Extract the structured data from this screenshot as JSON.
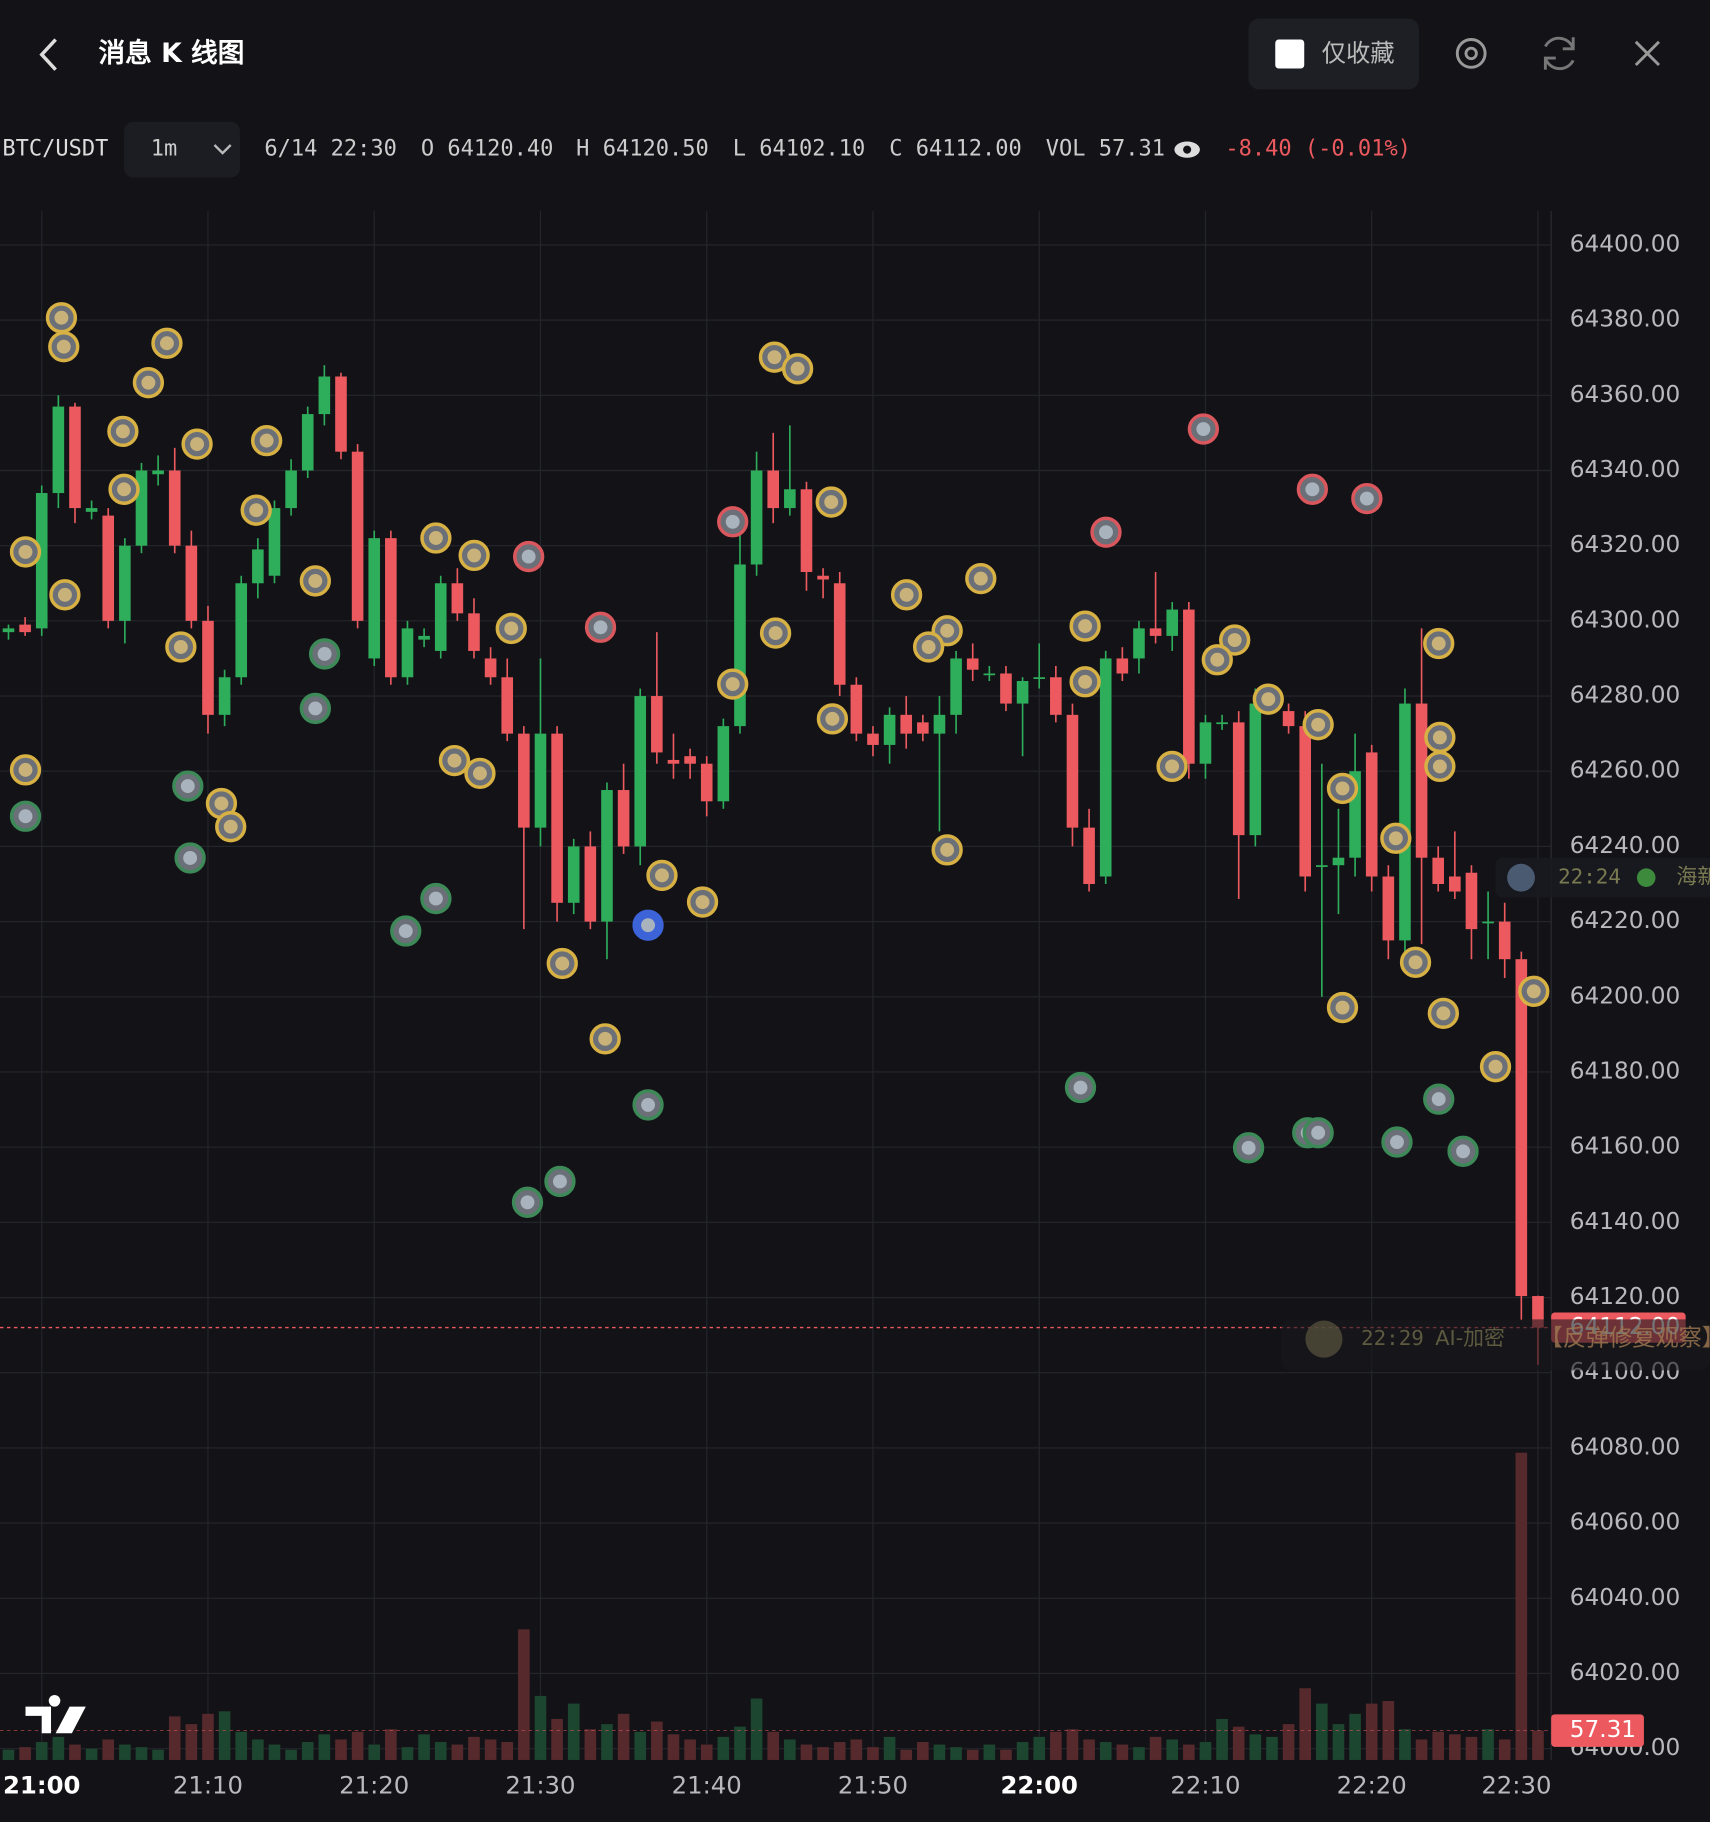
{
  "header": {
    "title": "消息 K 线图",
    "favorites_label": "仅收藏"
  },
  "info": {
    "symbol": "BTC/USDT",
    "interval": "1m",
    "items": [
      {
        "label": "",
        "value": "6/14 22:30"
      },
      {
        "label": "O",
        "value": "64120.40"
      },
      {
        "label": "H",
        "value": "64120.50"
      },
      {
        "label": "L",
        "value": "64102.10"
      },
      {
        "label": "C",
        "value": "64112.00"
      },
      {
        "label": "VOL",
        "value": "57.31"
      }
    ],
    "change": "-8.40 (-0.01%)"
  },
  "chart_data": {
    "type": "candlestick",
    "ylim": [
      63997,
      64409
    ],
    "yticks": [
      {
        "value": 64400,
        "label": "64400.00"
      },
      {
        "value": 64380,
        "label": "64380.00"
      },
      {
        "value": 64360,
        "label": "64360.00"
      },
      {
        "value": 64340,
        "label": "64340.00"
      },
      {
        "value": 64320,
        "label": "64320.00"
      },
      {
        "value": 64300,
        "label": "64300.00"
      },
      {
        "value": 64280,
        "label": "64280.00"
      },
      {
        "value": 64260,
        "label": "64260.00"
      },
      {
        "value": 64240,
        "label": "64240.00"
      },
      {
        "value": 64220,
        "label": "64220.00"
      },
      {
        "value": 64200,
        "label": "64200.00"
      },
      {
        "value": 64180,
        "label": "64180.00"
      },
      {
        "value": 64160,
        "label": "64160.00"
      },
      {
        "value": 64140,
        "label": "64140.00"
      },
      {
        "value": 64120,
        "label": "64120.00"
      },
      {
        "value": 64100,
        "label": "64100.00"
      },
      {
        "value": 64080,
        "label": "64080.00"
      },
      {
        "value": 64060,
        "label": "64060.00"
      },
      {
        "value": 64040,
        "label": "64040.00"
      },
      {
        "value": 64020,
        "label": "64020.00"
      },
      {
        "value": 64000,
        "label": "64000.00"
      }
    ],
    "xticks": [
      {
        "value": 2,
        "label": "21:00"
      },
      {
        "value": 12,
        "label": "21:10"
      },
      {
        "value": 22,
        "label": "21:20"
      },
      {
        "value": 32,
        "label": "21:30"
      },
      {
        "value": 42,
        "label": "21:40"
      },
      {
        "value": 52,
        "label": "21:50"
      },
      {
        "value": 62,
        "label": "22:00"
      },
      {
        "value": 72,
        "label": "22:10"
      },
      {
        "value": 82,
        "label": "22:20"
      },
      {
        "value": 92,
        "label": "22:30"
      }
    ],
    "up_color": "#2eae5b",
    "down_color": "#ec5a5f",
    "candles": [
      [
        64297,
        64299,
        64295,
        64298
      ],
      [
        64299,
        64301,
        64296,
        64297
      ],
      [
        64298,
        64336,
        64296,
        64334
      ],
      [
        64334,
        64360,
        64330,
        64357
      ],
      [
        64357,
        64358,
        64326,
        64330
      ],
      [
        64329,
        64332,
        64327,
        64330
      ],
      [
        64328,
        64330,
        64298,
        64300
      ],
      [
        64300,
        64322,
        64294,
        64320
      ],
      [
        64320,
        64342,
        64318,
        64340
      ],
      [
        64339,
        64344,
        64336,
        64340
      ],
      [
        64340,
        64346,
        64318,
        64320
      ],
      [
        64320,
        64324,
        64298,
        64300
      ],
      [
        64300,
        64304,
        64270,
        64275
      ],
      [
        64275,
        64287,
        64272,
        64285
      ],
      [
        64285,
        64312,
        64283,
        64310
      ],
      [
        64310,
        64322,
        64306,
        64319
      ],
      [
        64312,
        64332,
        64310,
        64330
      ],
      [
        64330,
        64343,
        64328,
        64340
      ],
      [
        64340,
        64357,
        64338,
        64355
      ],
      [
        64355,
        64368,
        64352,
        64365
      ],
      [
        64365,
        64366,
        64343,
        64345
      ],
      [
        64345,
        64347,
        64298,
        64300
      ],
      [
        64290,
        64324,
        64288,
        64322
      ],
      [
        64322,
        64324,
        64283,
        64285
      ],
      [
        64285,
        64300,
        64283,
        64298
      ],
      [
        64295,
        64298,
        64293,
        64296
      ],
      [
        64292,
        64312,
        64290,
        64310
      ],
      [
        64310,
        64314,
        64300,
        64302
      ],
      [
        64302,
        64306,
        64290,
        64292
      ],
      [
        64290,
        64293,
        64283,
        64285
      ],
      [
        64285,
        64290,
        64268,
        64270
      ],
      [
        64270,
        64272,
        64218,
        64245
      ],
      [
        64245,
        64290,
        64240,
        64270
      ],
      [
        64270,
        64272,
        64220,
        64225
      ],
      [
        64225,
        64242,
        64222,
        64240
      ],
      [
        64240,
        64244,
        64218,
        64220
      ],
      [
        64220,
        64257,
        64210,
        64255
      ],
      [
        64255,
        64262,
        64238,
        64240
      ],
      [
        64240,
        64282,
        64235,
        64280
      ],
      [
        64280,
        64297,
        64262,
        64265
      ],
      [
        64263,
        64270,
        64258,
        64262
      ],
      [
        64264,
        64266,
        64258,
        64262
      ],
      [
        64262,
        64264,
        64248,
        64252
      ],
      [
        64252,
        64274,
        64250,
        64272
      ],
      [
        64272,
        64328,
        64270,
        64315
      ],
      [
        64315,
        64345,
        64312,
        64340
      ],
      [
        64340,
        64350,
        64326,
        64330
      ],
      [
        64330,
        64352,
        64328,
        64335
      ],
      [
        64335,
        64337,
        64308,
        64313
      ],
      [
        64312,
        64314,
        64306,
        64311
      ],
      [
        64310,
        64313,
        64280,
        64283
      ],
      [
        64283,
        64285,
        64268,
        64270
      ],
      [
        64270,
        64272,
        64264,
        64267
      ],
      [
        64267,
        64277,
        64262,
        64275
      ],
      [
        64275,
        64280,
        64266,
        64270
      ],
      [
        64273,
        64275,
        64268,
        64270
      ],
      [
        64270,
        64280,
        64244,
        64275
      ],
      [
        64275,
        64292,
        64270,
        64290
      ],
      [
        64290,
        64294,
        64284,
        64287
      ],
      [
        64286,
        64288,
        64284,
        64286
      ],
      [
        64286,
        64288,
        64276,
        64278
      ],
      [
        64278,
        64285,
        64264,
        64284
      ],
      [
        64285,
        64294,
        64282,
        64285
      ],
      [
        64285,
        64288,
        64273,
        64275
      ],
      [
        64275,
        64278,
        64240,
        64245
      ],
      [
        64245,
        64250,
        64228,
        64230
      ],
      [
        64232,
        64292,
        64230,
        64290
      ],
      [
        64290,
        64293,
        64284,
        64286
      ],
      [
        64290,
        64300,
        64286,
        64298
      ],
      [
        64298,
        64313,
        64294,
        64296
      ],
      [
        64296,
        64305,
        64292,
        64303
      ],
      [
        64303,
        64305,
        64258,
        64262
      ],
      [
        64262,
        64275,
        64258,
        64273
      ],
      [
        64273,
        64275,
        64271,
        64273
      ],
      [
        64273,
        64276,
        64226,
        64243
      ],
      [
        64243,
        64282,
        64240,
        64278
      ],
      [
        64278,
        64280,
        64276,
        64278
      ],
      [
        64276,
        64278,
        64270,
        64272
      ],
      [
        64272,
        64276,
        64228,
        64232
      ],
      [
        64235,
        64262,
        64200,
        64235
      ],
      [
        64235,
        64250,
        64222,
        64237
      ],
      [
        64237,
        64270,
        64232,
        64260
      ],
      [
        64265,
        64267,
        64228,
        64232
      ],
      [
        64232,
        64235,
        64210,
        64215
      ],
      [
        64215,
        64282,
        64212,
        64278
      ],
      [
        64278,
        64298,
        64214,
        64237
      ],
      [
        64237,
        64240,
        64228,
        64230
      ],
      [
        64232,
        64244,
        64226,
        64228
      ],
      [
        64233,
        64235,
        64210,
        64218
      ],
      [
        64220,
        64228,
        64210,
        64220
      ],
      [
        64220,
        64225,
        64205,
        64210
      ],
      [
        64210,
        64212,
        64114,
        64120.4
      ],
      [
        64120.4,
        64120.5,
        64102.1,
        64112
      ]
    ],
    "volumes": [
      20,
      25,
      35,
      45,
      30,
      22,
      40,
      30,
      25,
      20,
      85,
      70,
      90,
      95,
      55,
      40,
      30,
      20,
      35,
      50,
      40,
      55,
      30,
      60,
      25,
      50,
      35,
      30,
      45,
      40,
      35,
      255,
      125,
      80,
      110,
      60,
      70,
      90,
      55,
      75,
      50,
      40,
      30,
      45,
      65,
      120,
      55,
      40,
      30,
      25,
      35,
      40,
      25,
      45,
      20,
      35,
      30,
      25,
      20,
      30,
      20,
      35,
      45,
      55,
      60,
      40,
      35,
      30,
      25,
      45,
      40,
      30,
      35,
      80,
      65,
      50,
      45,
      70,
      140,
      110,
      70,
      90,
      110,
      115,
      60,
      40,
      55,
      50,
      45,
      60,
      40,
      600,
      57.31
    ],
    "last_price_label": "64112.00",
    "last_volume_label": "57.31",
    "annotations": [
      {
        "time": "22:24",
        "text": "海新"
      },
      {
        "time": "22:29",
        "text": "AI-加密"
      },
      {
        "time": "",
        "text": "【反弹修复观察】"
      }
    ]
  }
}
